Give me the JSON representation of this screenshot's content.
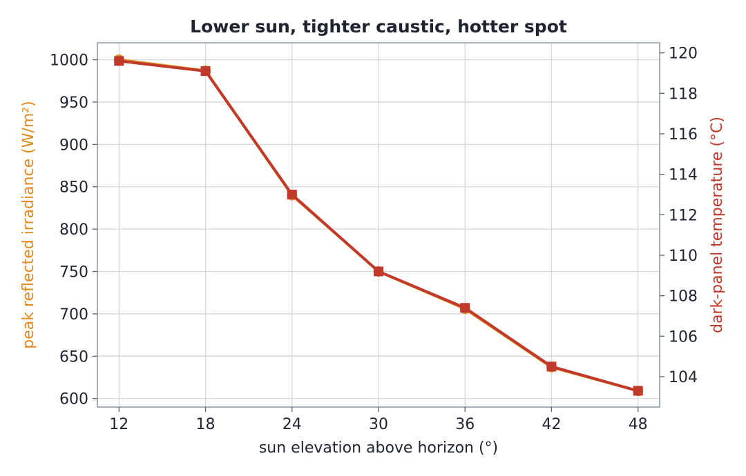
{
  "chart_data": {
    "type": "line",
    "title": "Lower sun, tighter caustic, hotter spot",
    "xlabel": "sun elevation above horizon  (°)",
    "ylabel_left": "peak reflected irradiance  (W/m²)",
    "ylabel_right": "dark-panel temperature  (°C)",
    "x": [
      12,
      18,
      24,
      30,
      36,
      42,
      48
    ],
    "x_ticks": [
      "12",
      "18",
      "24",
      "30",
      "36",
      "42",
      "48"
    ],
    "y_left_ticks": [
      "600",
      "650",
      "700",
      "750",
      "800",
      "850",
      "900",
      "950",
      "1000"
    ],
    "y_right_ticks": [
      "104",
      "106",
      "108",
      "110",
      "112",
      "114",
      "116",
      "118",
      "120"
    ],
    "xlim": [
      10.5,
      49.5
    ],
    "ylim_left": [
      590,
      1020
    ],
    "ylim_right": [
      102.5,
      120.5
    ],
    "grid": true,
    "series": [
      {
        "axis": "left",
        "marker": "circle",
        "color": "#e08a1e",
        "values": [
          1000,
          987,
          840,
          750,
          706,
          637,
          609
        ]
      },
      {
        "axis": "right",
        "marker": "square",
        "color": "#c0392b",
        "values": [
          119.6,
          119.1,
          113.0,
          109.2,
          107.4,
          104.5,
          103.3
        ]
      }
    ],
    "colors": {
      "left_axis_label": "#e08a1e",
      "right_axis_label": "#c0392b",
      "text": "#1f2430",
      "grid": "#d3d8de",
      "spine": "#8a949e"
    }
  }
}
